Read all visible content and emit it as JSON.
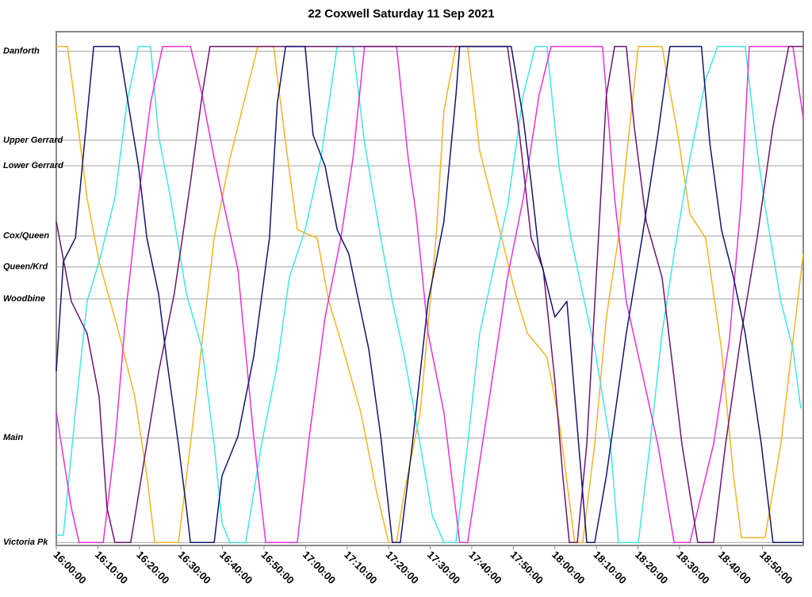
{
  "chart_data": {
    "type": "line",
    "title": "22 Coxwell Saturday 11 Sep 2021",
    "xlim": [
      0,
      179.8
    ],
    "ylim": [
      -0.6,
      104.0
    ],
    "xticks": [
      {
        "value": 0,
        "label": "16:00:00"
      },
      {
        "value": 10,
        "label": "16:10:00"
      },
      {
        "value": 20,
        "label": "16:20:00"
      },
      {
        "value": 30,
        "label": "16:30:00"
      },
      {
        "value": 40,
        "label": "16:40:00"
      },
      {
        "value": 50,
        "label": "16:50:00"
      },
      {
        "value": 60,
        "label": "17:00:00"
      },
      {
        "value": 70,
        "label": "17:10:00"
      },
      {
        "value": 80,
        "label": "17:20:00"
      },
      {
        "value": 90,
        "label": "17:30:00"
      },
      {
        "value": 100,
        "label": "17:40:00"
      },
      {
        "value": 110,
        "label": "17:50:00"
      },
      {
        "value": 120,
        "label": "18:00:00"
      },
      {
        "value": 130,
        "label": "18:10:00"
      },
      {
        "value": 140,
        "label": "18:20:00"
      },
      {
        "value": 150,
        "label": "18:30:00"
      },
      {
        "value": 160,
        "label": "18:40:00"
      },
      {
        "value": 170,
        "label": "18:50:00"
      }
    ],
    "yticks": [
      {
        "value": 0,
        "label": "Victoria Pk"
      },
      {
        "value": 21.3,
        "label": "Main"
      },
      {
        "value": 49.6,
        "label": "Woodbine"
      },
      {
        "value": 56.1,
        "label": "Queen/Krd"
      },
      {
        "value": 62.4,
        "label": "Cox/Queen"
      },
      {
        "value": 76.7,
        "label": "Lower Gerrard"
      },
      {
        "value": 81.9,
        "label": "Upper Gerrard"
      },
      {
        "value": 100,
        "label": "Danforth"
      }
    ],
    "grid": true,
    "series": [
      {
        "color": "#f5b324",
        "x": [
          0,
          2.7,
          5.5,
          7.4,
          10.3,
          15.1,
          18.9,
          21.8,
          23.7,
          29.4,
          32.3,
          35.1,
          38.0,
          41.8,
          45.6,
          48.5,
          52.3,
          55.2,
          58.0,
          62.8,
          65.6,
          68.5,
          73.3,
          77.1,
          80.0,
          81.9,
          83.8,
          87.6,
          91.4,
          93.3,
          96.2,
          99.0,
          101.9,
          106.7,
          110.5,
          113.4,
          118.1,
          121.0,
          124.8,
          126.7,
          129.6,
          132.4,
          135.3,
          137.2,
          140.1,
          145.8,
          149.6,
          152.5,
          156.3,
          160.1,
          163.0,
          164.9,
          170.6,
          174.4,
          177.3,
          179.8
        ],
        "values": [
          101,
          101,
          83.0,
          70.1,
          57.2,
          42.6,
          29.7,
          13.6,
          0,
          0,
          20.0,
          41.0,
          62.0,
          78.2,
          91.1,
          101,
          101,
          81.4,
          63.7,
          62.0,
          49.1,
          41.0,
          26.5,
          10.3,
          0,
          0,
          10.3,
          26.5,
          62.0,
          87.9,
          101,
          101,
          79.8,
          63.7,
          50.7,
          42.6,
          37.8,
          24.9,
          0,
          0,
          20.0,
          45.9,
          62.0,
          78.2,
          101,
          101,
          83.0,
          66.9,
          62.0,
          39.4,
          13.6,
          1.0,
          1.0,
          20.0,
          41.0,
          58.8
        ]
      },
      {
        "color": "#40e6e6",
        "x": [
          0,
          1.7,
          4.6,
          7.4,
          10.3,
          14.1,
          17.0,
          19.8,
          22.7,
          24.6,
          27.5,
          31.3,
          35.1,
          38.0,
          39.9,
          41.8,
          45.6,
          49.4,
          53.2,
          56.1,
          59.9,
          63.7,
          67.6,
          71.4,
          74.2,
          78.1,
          80.9,
          83.8,
          87.6,
          90.5,
          93.3,
          96.2,
          99.0,
          101.9,
          104.8,
          108.6,
          112.4,
          115.3,
          118.1,
          121.0,
          123.9,
          126.7,
          129.6,
          133.4,
          135.3,
          140.1,
          142.9,
          145.8,
          148.7,
          152.5,
          156.3,
          159.2,
          165.8,
          168.7,
          170.6,
          174.4,
          177.3,
          179.2
        ],
        "values": [
          1.5,
          1.5,
          26.5,
          49.1,
          57.2,
          70.1,
          89.5,
          101,
          101,
          83.0,
          70.1,
          50.7,
          39.4,
          20.0,
          3.9,
          0,
          0,
          20.0,
          36.2,
          54.0,
          63.7,
          78.2,
          101,
          101,
          81.4,
          62.0,
          49.1,
          37.8,
          20.0,
          5.5,
          0,
          0,
          20.0,
          42.6,
          54.0,
          68.5,
          91.1,
          101,
          101,
          76.6,
          62.0,
          50.7,
          39.4,
          20.0,
          0,
          0,
          20.0,
          42.6,
          58.8,
          78.2,
          94.3,
          101,
          101,
          79.8,
          68.5,
          49.1,
          39.4,
          27.3
        ]
      },
      {
        "color": "#e632d6",
        "x": [
          0,
          3.6,
          5.5,
          11.3,
          14.1,
          17.0,
          19.8,
          22.7,
          25.6,
          32.3,
          35.1,
          38.0,
          40.8,
          43.7,
          47.5,
          50.4,
          58.0,
          60.9,
          64.7,
          68.5,
          71.4,
          74.2,
          81.9,
          84.7,
          86.6,
          89.5,
          93.3,
          97.1,
          99.0,
          108.6,
          112.4,
          116.2,
          119.1,
          131.5,
          134.4,
          137.2,
          141.0,
          144.8,
          148.7,
          152.5,
          158.2,
          162.0,
          164.9,
          166.8,
          177.3,
          179.8
        ],
        "values": [
          26.5,
          7.1,
          0,
          0,
          20.0,
          49.1,
          70.1,
          89.5,
          101,
          101,
          91.1,
          78.2,
          66.9,
          55.6,
          21.6,
          0,
          0,
          21.6,
          45.9,
          62.0,
          78.2,
          101,
          101,
          78.2,
          66.9,
          42.6,
          26.5,
          0,
          0,
          54.0,
          70.1,
          91.1,
          101,
          101,
          70.1,
          49.1,
          34.6,
          20.0,
          0,
          0,
          20.0,
          41.0,
          70.1,
          101,
          101,
          86.3
        ]
      },
      {
        "color": "#6e146e",
        "x": [
          0,
          3.6,
          7.4,
          10.3,
          12.2,
          14.1,
          17.9,
          24.6,
          28.4,
          32.3,
          35.1,
          37.0,
          108.6,
          111.5,
          114.3,
          117.2,
          120.0,
          121.9,
          123.5,
          125.4,
          127.7,
          130.5,
          132.4,
          134.4,
          137.2,
          139.1,
          142.0,
          145.8,
          150.6,
          154.4,
          158.2,
          161.1,
          164.9,
          168.7,
          172.5,
          176.3,
          179.8
        ],
        "values": [
          65.3,
          49.1,
          42.6,
          29.7,
          7.1,
          0,
          0,
          34.6,
          50.7,
          73.3,
          91.1,
          101,
          101,
          83.0,
          62.0,
          55.6,
          33.0,
          13.6,
          0,
          0,
          20.0,
          62.0,
          91.1,
          101,
          101,
          84.7,
          65.3,
          54.0,
          20.0,
          0,
          0,
          20.0,
          42.6,
          62.0,
          84.7,
          101,
          101
        ]
      },
      {
        "color": "#14146e",
        "x": [
          0,
          1.7,
          4.6,
          9.0,
          15.1,
          17.9,
          19.8,
          21.8,
          24.6,
          26.5,
          29.4,
          31.3,
          32.3,
          38.0,
          39.9,
          43.7,
          47.5,
          51.3,
          53.2,
          55.2,
          59.9,
          61.8,
          64.7,
          67.6,
          70.4,
          75.2,
          78.1,
          80.9,
          82.8,
          85.7,
          89.5,
          93.3,
          96.2,
          97.1,
          109.5,
          112.4,
          114.3,
          116.2,
          120.0,
          122.9,
          124.8,
          127.7,
          129.6,
          132.4,
          137.2,
          141.0,
          144.8,
          147.7,
          155.3,
          157.3,
          160.1,
          163.0,
          165.8,
          169.7,
          172.5,
          179.8
        ],
        "values": [
          34.9,
          57.2,
          62.0,
          101,
          101,
          86.3,
          76.6,
          62.0,
          50.7,
          37.8,
          20.0,
          7.1,
          0,
          0,
          13.6,
          21.6,
          37.8,
          62.0,
          89.5,
          101,
          101,
          83.0,
          76.6,
          63.7,
          58.8,
          39.4,
          21.6,
          0,
          0,
          20.0,
          49.1,
          65.3,
          91.1,
          101,
          101,
          86.3,
          73.3,
          58.8,
          45.9,
          49.1,
          29.7,
          0,
          0,
          13.6,
          42.6,
          62.0,
          83.0,
          101,
          101,
          81.4,
          63.7,
          54.0,
          42.6,
          20.0,
          0,
          0
        ]
      }
    ]
  }
}
